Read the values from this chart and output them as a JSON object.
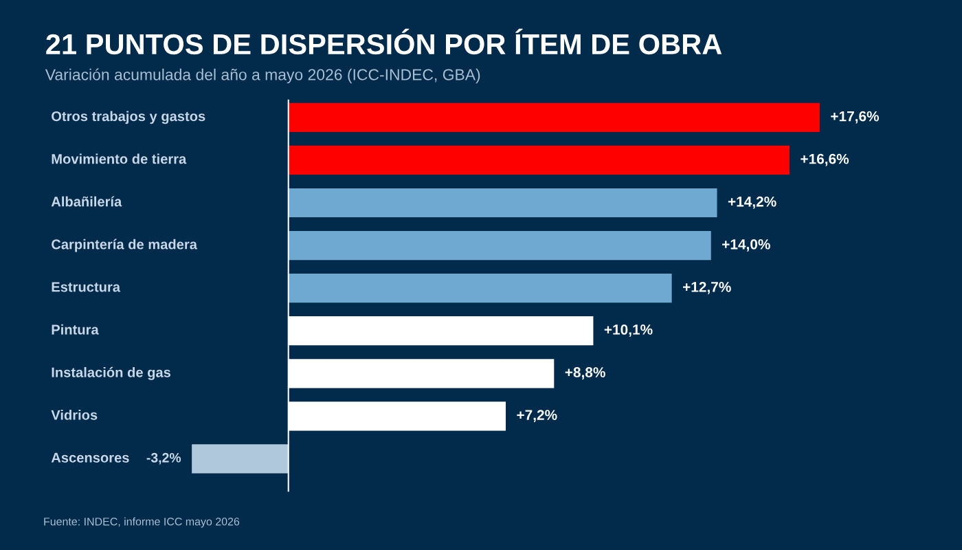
{
  "chart_data": {
    "type": "bar",
    "orientation": "horizontal",
    "title": "21 PUNTOS DE DISPERSIÓN POR ÍTEM DE OBRA",
    "subtitle": "Variación acumulada del año a mayo 2026 (ICC-INDEC, GBA)",
    "categories": [
      "Otros trabajos y gastos",
      "Movimiento de tierra",
      "Albañilería",
      "Carpintería de madera",
      "Estructura",
      "Pintura",
      "Instalación de gas",
      "Vidrios",
      "Ascensores"
    ],
    "values": [
      17.6,
      16.6,
      14.2,
      14.0,
      12.7,
      10.1,
      8.8,
      7.2,
      -3.2
    ],
    "colors": [
      "#ff0000",
      "#ff0000",
      "#6fa8d0",
      "#6fa8d0",
      "#6fa8d0",
      "#ffffff",
      "#ffffff",
      "#ffffff",
      "#b0c8dc"
    ],
    "value_labels": [
      "+17,6%",
      "+16,6%",
      "+14,2%",
      "+14,0%",
      "+12,7%",
      "+10,1%",
      "+8,8%",
      "+7,2%",
      "-3,2%"
    ],
    "annotations": [
      "Fuente: INDEC, informe ICC mayo 2026"
    ]
  }
}
